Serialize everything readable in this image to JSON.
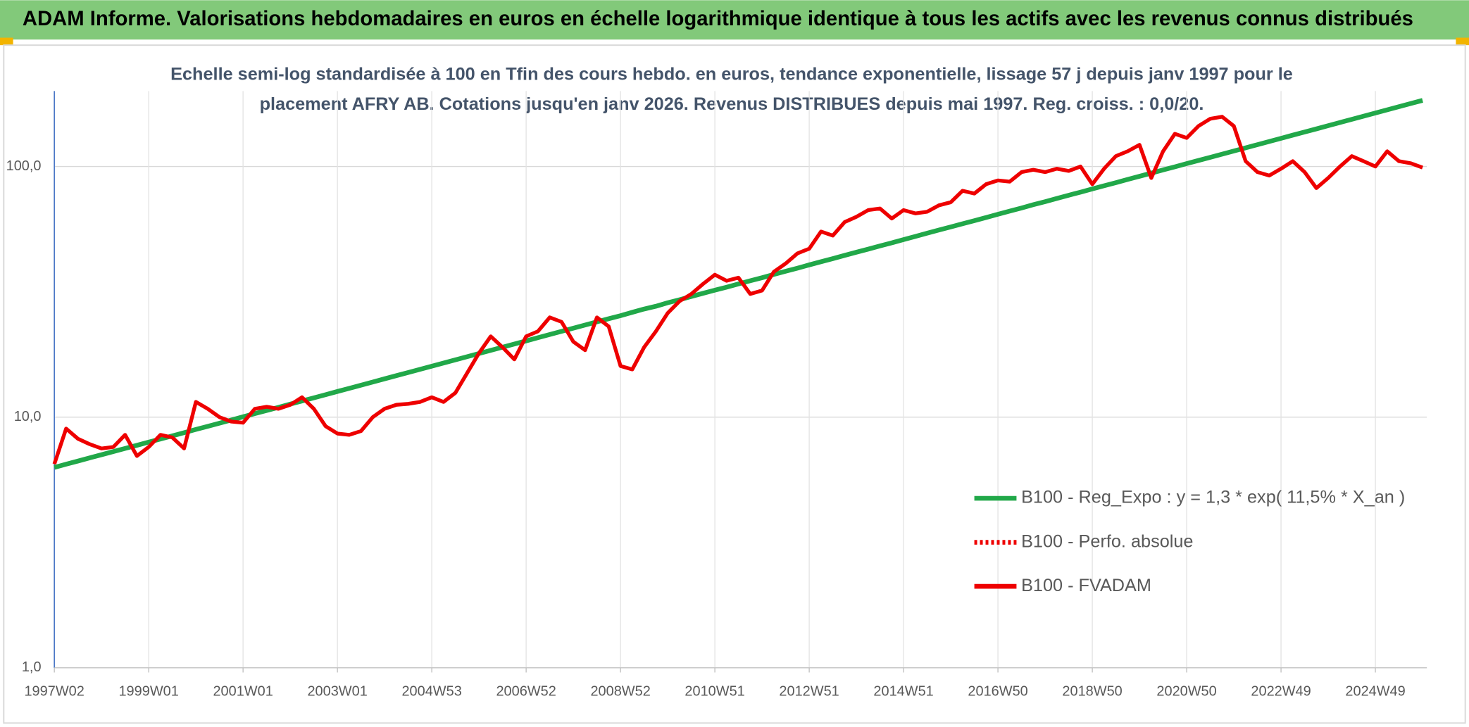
{
  "chart_data": {
    "type": "line",
    "title": "ADAM Informe. Valorisations hebdomadaires en euros en échelle logarithmique identique à tous les actifs avec les revenus connus distribués",
    "subtitle": [
      "Echelle semi-log standardisée à 100 en Tfin des cours hebdo. en euros, tendance exponentielle, lissage 57 j depuis janv 1997 pour le",
      "placement AFRY AB. Cotations jusqu'en janv 2026. Revenus DISTRIBUES depuis mai 1997. Reg. croiss. : 0,0/20."
    ],
    "log_scale": true,
    "grid": true,
    "legend": "right",
    "ylim": [
      1,
      200
    ],
    "yticks": [
      {
        "value": 1,
        "label": "1,0"
      },
      {
        "value": 10,
        "label": "10,0"
      },
      {
        "value": 100,
        "label": "100,0"
      }
    ],
    "categories": [
      "1997W02",
      null,
      null,
      null,
      null,
      null,
      null,
      null,
      "1999W01",
      null,
      null,
      null,
      null,
      null,
      null,
      null,
      "2001W01",
      null,
      null,
      null,
      null,
      null,
      null,
      null,
      "2003W01",
      null,
      null,
      null,
      null,
      null,
      null,
      null,
      "2004W53",
      null,
      null,
      null,
      null,
      null,
      null,
      null,
      "2006W52",
      null,
      null,
      null,
      null,
      null,
      null,
      null,
      "2008W52",
      null,
      null,
      null,
      null,
      null,
      null,
      null,
      "2010W51",
      null,
      null,
      null,
      null,
      null,
      null,
      null,
      "2012W51",
      null,
      null,
      null,
      null,
      null,
      null,
      null,
      "2014W51",
      null,
      null,
      null,
      null,
      null,
      null,
      null,
      "2016W50",
      null,
      null,
      null,
      null,
      null,
      null,
      null,
      "2018W50",
      null,
      null,
      null,
      null,
      null,
      null,
      null,
      "2020W50",
      null,
      null,
      null,
      null,
      null,
      null,
      null,
      "2022W49",
      null,
      null,
      null,
      null,
      null,
      null,
      null,
      "2024W49",
      null,
      null,
      null,
      null
    ],
    "series": [
      {
        "name": "B100 - Reg_Expo : y = 1,3 * exp( 11,5% *  X_an )",
        "color": "#21a849",
        "dash": "solid",
        "values": [
          6.3,
          6.49,
          6.68,
          6.88,
          7.08,
          7.29,
          7.5,
          7.72,
          7.95,
          8.18,
          8.42,
          8.67,
          8.93,
          9.19,
          9.46,
          9.74,
          10.03,
          10.33,
          10.63,
          10.94,
          11.27,
          11.6,
          11.94,
          12.29,
          12.66,
          13.03,
          13.41,
          13.81,
          14.22,
          14.64,
          15.07,
          15.51,
          15.97,
          16.44,
          16.93,
          17.43,
          17.94,
          18.47,
          19.02,
          19.58,
          20.15,
          20.75,
          21.36,
          21.99,
          22.64,
          23.31,
          24.0,
          24.7,
          25.4,
          26.2,
          27.0,
          27.7,
          28.6,
          29.4,
          30.3,
          31.2,
          32.1,
          33.0,
          34.0,
          35.0,
          36.0,
          37.1,
          38.2,
          39.3,
          40.5,
          41.7,
          42.9,
          44.2,
          45.5,
          46.8,
          48.2,
          49.6,
          51.1,
          52.6,
          54.2,
          55.8,
          57.4,
          59.1,
          60.8,
          62.6,
          64.5,
          66.4,
          68.3,
          70.4,
          72.4,
          74.6,
          76.8,
          79.0,
          81.4,
          83.8,
          86.2,
          88.8,
          91.4,
          94.1,
          96.9,
          99.7,
          102.7,
          105.7,
          108.8,
          112.0,
          115.3,
          118.7,
          122.2,
          125.8,
          129.5,
          133.4,
          137.3,
          141.3,
          145.5,
          149.8,
          154.2,
          158.8,
          163.5,
          168.3,
          173.3,
          178.4,
          183.6
        ]
      },
      {
        "name": "B100 - Perfo. absolue",
        "color": "#ee0000",
        "dash": "dotted",
        "values": [
          null,
          null,
          null,
          null,
          null,
          null,
          null,
          null,
          null,
          null,
          null,
          null,
          null,
          null,
          null,
          null,
          null,
          null,
          null,
          null,
          null,
          null,
          null,
          null,
          null,
          null,
          null,
          null,
          null,
          null,
          null,
          null,
          null,
          null,
          null,
          null,
          null,
          null,
          null,
          null,
          null,
          null,
          null,
          null,
          null,
          null,
          null,
          null,
          null,
          null,
          null,
          null,
          null,
          null,
          null,
          null,
          null,
          null,
          null,
          null,
          null,
          null,
          null,
          null,
          null,
          null,
          null,
          null,
          null,
          null,
          null,
          null,
          null,
          null,
          null,
          null,
          null,
          null,
          null,
          null,
          null,
          null,
          null,
          null,
          null,
          null,
          null,
          null,
          null,
          null,
          null,
          null,
          null,
          null,
          null,
          null,
          null,
          null,
          null,
          null,
          null,
          null,
          null,
          null,
          null,
          null,
          null,
          null,
          null,
          null,
          null,
          null,
          null,
          null,
          null,
          null,
          null
        ]
      },
      {
        "name": "B100 - FVADAM",
        "color": "#ee0000",
        "dash": "solid",
        "values": [
          6.5,
          9.0,
          8.2,
          7.8,
          7.5,
          7.6,
          8.5,
          7.0,
          7.6,
          8.5,
          8.3,
          7.5,
          11.5,
          10.8,
          10.0,
          9.6,
          9.5,
          10.8,
          11.0,
          10.8,
          11.2,
          12.0,
          10.8,
          9.2,
          8.6,
          8.5,
          8.8,
          10.0,
          10.8,
          11.2,
          11.3,
          11.5,
          12.0,
          11.5,
          12.5,
          15.0,
          18.0,
          21.0,
          19.0,
          17.0,
          21.0,
          22.0,
          25.0,
          24.0,
          20.0,
          18.5,
          25.0,
          23.0,
          16.0,
          15.5,
          19.0,
          22.0,
          26.0,
          29.0,
          31.0,
          34.0,
          37.0,
          35.0,
          36.0,
          31.0,
          32.0,
          38.0,
          41.0,
          45.0,
          47.0,
          55.0,
          53.0,
          60.0,
          63.0,
          67.0,
          68.0,
          62.0,
          67.0,
          65.0,
          66.0,
          70.0,
          72.0,
          80.0,
          78.0,
          85.0,
          88.0,
          87.0,
          95.0,
          97.0,
          95.0,
          98.0,
          96.0,
          100.0,
          85.0,
          98.0,
          110.0,
          115.0,
          122.0,
          90.0,
          115.0,
          135.0,
          130.0,
          145.0,
          155.0,
          158.0,
          145.0,
          105.0,
          95.0,
          92.0,
          98.0,
          105.0,
          95.0,
          82.0,
          90.0,
          100.0,
          110.0,
          105.0,
          100.0,
          115.0,
          105.0,
          103.0,
          99.0
        ]
      }
    ]
  }
}
